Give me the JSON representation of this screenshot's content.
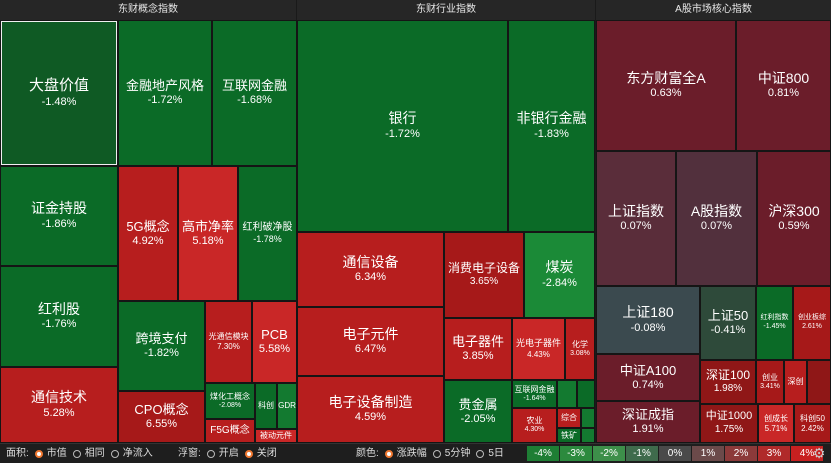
{
  "headers": [
    "东财概念指数",
    "东财行业指数",
    "A股市场核心指数"
  ],
  "tiles": [
    {
      "name": "大盘价值",
      "pct": "-1.48%"
    },
    {
      "name": "金融地产风格",
      "pct": "-1.72%"
    },
    {
      "name": "互联网金融",
      "pct": "-1.68%"
    },
    {
      "name": "证金持股",
      "pct": "-1.86%"
    },
    {
      "name": "5G概念",
      "pct": "4.92%"
    },
    {
      "name": "高市净率",
      "pct": "5.18%"
    },
    {
      "name": "红利破净股",
      "pct": "-1.78%"
    },
    {
      "name": "红利股",
      "pct": "-1.76%"
    },
    {
      "name": "跨境支付",
      "pct": "-1.82%"
    },
    {
      "name": "光通信模块",
      "pct": "7.30%"
    },
    {
      "name": "PCB",
      "pct": "5.58%"
    },
    {
      "name": "通信技术",
      "pct": "5.28%"
    },
    {
      "name": "CPO概念",
      "pct": "6.55%"
    },
    {
      "name": "煤化工概念",
      "pct": "-2.08%"
    },
    {
      "name": "科创",
      "pct": ""
    },
    {
      "name": "GDR",
      "pct": ""
    },
    {
      "name": "F5G概念",
      "pct": ""
    },
    {
      "name": "被动元件",
      "pct": ""
    },
    {
      "name": "银行",
      "pct": "-1.72%"
    },
    {
      "name": "非银行金融",
      "pct": "-1.83%"
    },
    {
      "name": "通信设备",
      "pct": "6.34%"
    },
    {
      "name": "消费电子设备",
      "pct": "3.65%"
    },
    {
      "name": "煤炭",
      "pct": "-2.84%"
    },
    {
      "name": "电子元件",
      "pct": "6.47%"
    },
    {
      "name": "电子器件",
      "pct": "3.85%"
    },
    {
      "name": "光电子器件",
      "pct": "4.43%"
    },
    {
      "name": "化学",
      "pct": "3.08%"
    },
    {
      "name": "电子设备制造",
      "pct": "4.59%"
    },
    {
      "name": "贵金属",
      "pct": "-2.05%"
    },
    {
      "name": "互联网金融",
      "pct": "-1.64%"
    },
    {
      "name": "农业",
      "pct": "4.30%"
    },
    {
      "name": "综合",
      "pct": ""
    },
    {
      "name": "铁矿",
      "pct": ""
    },
    {
      "name": "东方财富全A",
      "pct": "0.63%"
    },
    {
      "name": "中证800",
      "pct": "0.81%"
    },
    {
      "name": "上证指数",
      "pct": "0.07%"
    },
    {
      "name": "A股指数",
      "pct": "0.07%"
    },
    {
      "name": "沪深300",
      "pct": "0.59%"
    },
    {
      "name": "上证180",
      "pct": "-0.08%"
    },
    {
      "name": "上证50",
      "pct": "-0.41%"
    },
    {
      "name": "红利指数",
      "pct": "-1.45%"
    },
    {
      "name": "创业板综",
      "pct": "2.61%"
    },
    {
      "name": "中证A100",
      "pct": "0.74%"
    },
    {
      "name": "深证100",
      "pct": "1.98%"
    },
    {
      "name": "创业",
      "pct": "3.41%"
    },
    {
      "name": "深创",
      "pct": ""
    },
    {
      "name": "深证成指",
      "pct": "1.91%"
    },
    {
      "name": "中证1000",
      "pct": "1.75%"
    },
    {
      "name": "创成长",
      "pct": "5.71%"
    },
    {
      "name": "科创50",
      "pct": "2.42%"
    }
  ],
  "footer": {
    "area_label": "面积:",
    "area_options": [
      "市值",
      "相同",
      "净流入"
    ],
    "float_label": "浮窗:",
    "float_options": [
      "开启",
      "关闭"
    ],
    "color_label": "颜色:",
    "color_options": [
      "涨跌幅",
      "5分钟",
      "5日"
    ],
    "legend": [
      "-4%",
      "-3%",
      "-2%",
      "-1%",
      "0%",
      "1%",
      "2%",
      "3%",
      "4%"
    ],
    "legend_colors": [
      "#1e7e34",
      "#2c8a3e",
      "#3d8f4a",
      "#3f6b4c",
      "#4a4a4a",
      "#6b4a4a",
      "#8c3a3a",
      "#b02a2a",
      "#c82020"
    ]
  }
}
